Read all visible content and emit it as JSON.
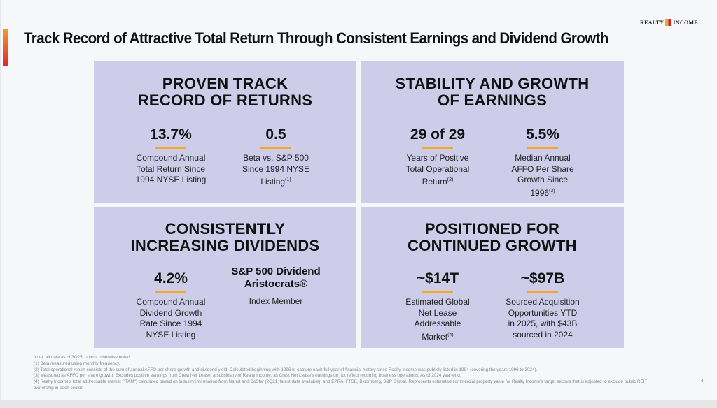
{
  "title": "Track Record of Attractive Total Return Through Consistent Earnings and Dividend Growth",
  "logo": {
    "left": "REALTY",
    "right": "INCOME"
  },
  "panels": [
    {
      "heading1": "PROVEN TRACK",
      "heading2": "RECORD OF RETURNS",
      "stats": [
        {
          "value": "13.7%",
          "lines": [
            "Compound Annual",
            "Total Return Since",
            "1994 NYSE Listing"
          ],
          "sup": ""
        },
        {
          "value": "0.5",
          "lines": [
            "Beta vs. S&P 500",
            "Since 1994 NYSE",
            "Listing"
          ],
          "sup": "(1)"
        }
      ]
    },
    {
      "heading1": "STABILITY AND GROWTH",
      "heading2": "OF EARNINGS",
      "stats": [
        {
          "value": "29 of 29",
          "lines": [
            "Years of Positive",
            "Total Operational",
            "Return"
          ],
          "sup": "(2)"
        },
        {
          "value": "5.5%",
          "lines": [
            "Median Annual",
            "AFFO Per Share",
            "Growth Since",
            "1996"
          ],
          "sup": "(3)"
        }
      ]
    },
    {
      "heading1": "CONSISTENTLY",
      "heading2": "INCREASING DIVIDENDS",
      "stats": [
        {
          "value": "4.2%",
          "lines": [
            "Compound Annual",
            "Dividend Growth",
            "Rate Since 1994",
            "NYSE Listing"
          ],
          "sup": ""
        },
        {
          "value": "S&P 500 Dividend Aristocrats®",
          "lines": [
            "Index Member"
          ],
          "sup": ""
        }
      ]
    },
    {
      "heading1": "POSITIONED FOR",
      "heading2": "CONTINUED GROWTH",
      "stats": [
        {
          "value": "~$14T",
          "lines": [
            "Estimated Global",
            "Net Lease",
            "Addressable",
            "Market"
          ],
          "sup": "(4)"
        },
        {
          "value": "~$97B",
          "lines": [
            "Sourced Acquisition",
            "Opportunities YTD",
            "in 2025, with $43B",
            "sourced in 2024"
          ],
          "sup": ""
        }
      ]
    }
  ],
  "notes": [
    "Note: all data as of 3Q25, unless otherwise noted.",
    "(1) Beta measured using monthly frequency.",
    "(2) Total operational return consists of the sum of annual AFFO per share growth and dividend yield. Calculated beginning with 1996 to capture each full year of financial history since Realty Income was publicly listed in 1994 (covering the years 1996 to 2024).",
    "(3) Measured as AFFO per share growth. Excludes positive earnings from Crest Net Lease, a subsidiary of Realty Income, as Crest Net Lease's earnings do not reflect recurring business operations. As of 2024 year-end.",
    "(4) Realty Income's total addressable market (\"TAM\") calculated based on industry information from Nareit and CoStar (2Q21; latest data available), and EPRA, FTSE, Bloomberg, S&P Global. Represents estimated commercial property value for Realty Income's target sectors that is adjusted to exclude public REIT ownership in each sector."
  ],
  "page_number": "4"
}
